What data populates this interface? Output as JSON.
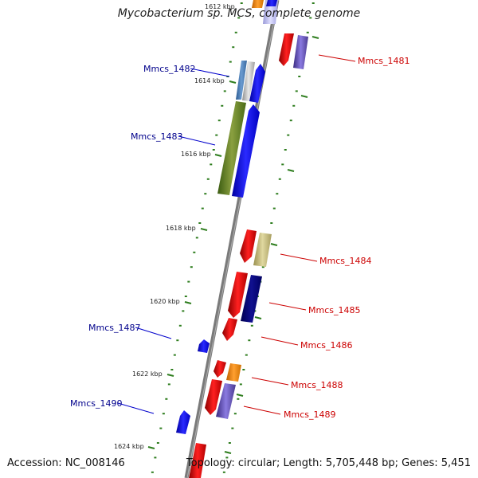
{
  "title": "Mycobacterium sp. MCS, complete genome",
  "accession": "Accession: NC_008146",
  "topology": "Topology: circular; Length: 5,705,448 bp; Genes: 5,451",
  "colors": {
    "backbone": "#808080",
    "tick": "#2e7d1e",
    "forward_label": "#cc0000",
    "reverse_label": "#00008b"
  },
  "kbp_labels": [
    "1612 kbp",
    "1614 kbp",
    "1616 kbp",
    "1618 kbp",
    "1620 kbp",
    "1622 kbp",
    "1624 kbp"
  ],
  "gene_labels": {
    "mmcs_1481": "Mmcs_1481",
    "mmcs_1482": "Mmcs_1482",
    "mmcs_1483": "Mmcs_1483",
    "mmcs_1484": "Mmcs_1484",
    "mmcs_1485": "Mmcs_1485",
    "mmcs_1486": "Mmcs_1486",
    "mmcs_1487": "Mmcs_1487",
    "mmcs_1488": "Mmcs_1488",
    "mmcs_1489": "Mmcs_1489",
    "mmcs_1490": "Mmcs_1490"
  }
}
